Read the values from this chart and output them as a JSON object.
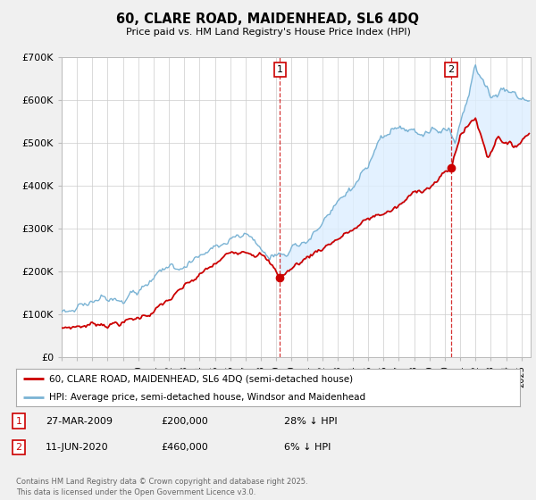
{
  "title": "60, CLARE ROAD, MAIDENHEAD, SL6 4DQ",
  "subtitle": "Price paid vs. HM Land Registry's House Price Index (HPI)",
  "ylim": [
    0,
    700000
  ],
  "yticks": [
    0,
    100000,
    200000,
    300000,
    400000,
    500000,
    600000,
    700000
  ],
  "ytick_labels": [
    "£0",
    "£100K",
    "£200K",
    "£300K",
    "£400K",
    "£500K",
    "£600K",
    "£700K"
  ],
  "line1_color": "#cc0000",
  "line2_color": "#7ab3d4",
  "fill_color": "#ddeeff",
  "legend1": "60, CLARE ROAD, MAIDENHEAD, SL6 4DQ (semi-detached house)",
  "legend2": "HPI: Average price, semi-detached house, Windsor and Maidenhead",
  "annotation1_date": "27-MAR-2009",
  "annotation1_price": "£200,000",
  "annotation1_hpi": "28% ↓ HPI",
  "annotation2_date": "11-JUN-2020",
  "annotation2_price": "£460,000",
  "annotation2_hpi": "6% ↓ HPI",
  "footer": "Contains HM Land Registry data © Crown copyright and database right 2025.\nThis data is licensed under the Open Government Licence v3.0.",
  "bg_color": "#f0f0f0",
  "plot_bg": "#ffffff",
  "marker1_year": 2009.23,
  "marker2_year": 2020.44,
  "marker1_val": 200000,
  "marker2_val": 460000
}
